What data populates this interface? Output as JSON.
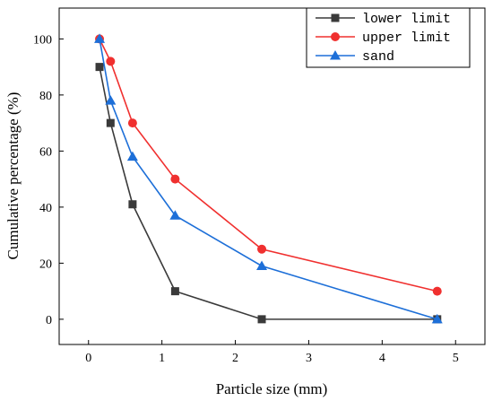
{
  "chart_data": {
    "type": "line",
    "title": "",
    "xlabel": "Particle size (mm)",
    "ylabel": "Cumulative percentage (%)",
    "xlim": [
      -0.4,
      5.4
    ],
    "ylim": [
      -9,
      111
    ],
    "xticks": [
      0,
      1,
      2,
      3,
      4,
      5
    ],
    "yticks": [
      0,
      20,
      40,
      60,
      80,
      100
    ],
    "grid": false,
    "legend_position": "top-right",
    "series": [
      {
        "name": "lower limit",
        "color": "#3a3a3a",
        "marker": "square",
        "x": [
          0.15,
          0.3,
          0.6,
          1.18,
          2.36,
          4.75
        ],
        "y": [
          90,
          70,
          41,
          10,
          0,
          0
        ]
      },
      {
        "name": "upper limit",
        "color": "#f0302f",
        "marker": "circle",
        "x": [
          0.15,
          0.3,
          0.6,
          1.18,
          2.36,
          4.75
        ],
        "y": [
          100,
          92,
          70,
          50,
          25,
          10
        ]
      },
      {
        "name": "sand",
        "color": "#1d6fd8",
        "marker": "triangle",
        "x": [
          0.15,
          0.3,
          0.6,
          1.18,
          2.36,
          4.75
        ],
        "y": [
          100,
          78,
          58,
          37,
          19,
          0
        ]
      }
    ]
  }
}
